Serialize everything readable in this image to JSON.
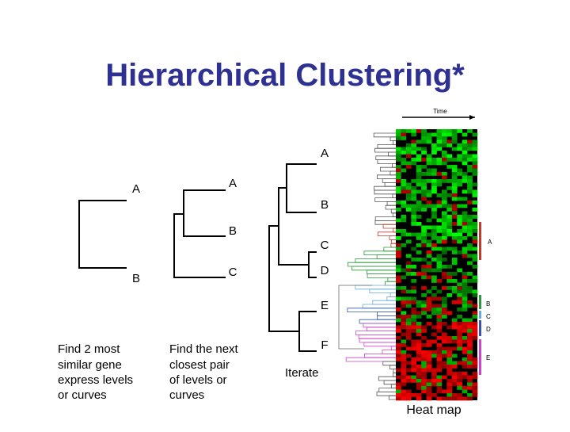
{
  "header": {
    "title": "Hierarchical Clustering*"
  },
  "panels": [
    {
      "labels": [
        "A",
        "B"
      ],
      "caption": [
        "Find 2 most",
        "similar gene",
        "express levels",
        "or curves"
      ]
    },
    {
      "labels": [
        "A",
        "B",
        "C"
      ],
      "caption": [
        "Find the next",
        "closest pair",
        "of levels or",
        "curves"
      ]
    },
    {
      "labels": [
        "A",
        "B",
        "C",
        "D",
        "E",
        "F"
      ],
      "caption": [
        "Iterate"
      ]
    }
  ],
  "heatmap": {
    "axis_label": "Time",
    "cluster_labels": [
      "A",
      "B",
      "C",
      "D",
      "E"
    ],
    "caption": "Heat map"
  }
}
